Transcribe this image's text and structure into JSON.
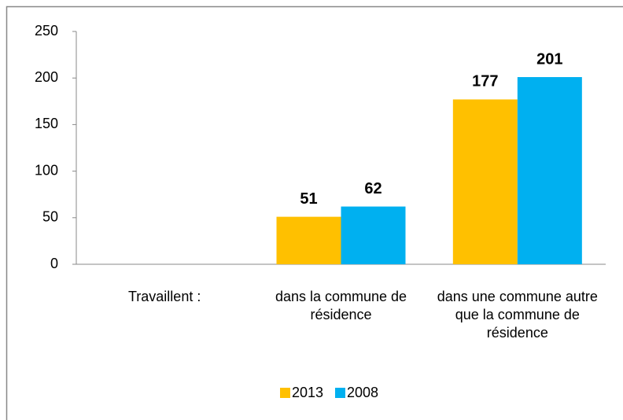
{
  "chart_data": {
    "type": "bar",
    "categories": [
      "Travaillent :",
      "dans la commune de résidence",
      "dans une commune autre que la commune de résidence"
    ],
    "series": [
      {
        "name": "2013",
        "color": "#ffc000",
        "values": [
          null,
          51,
          177
        ]
      },
      {
        "name": "2008",
        "color": "#00b0f0",
        "values": [
          null,
          62,
          201
        ]
      }
    ],
    "ylim": [
      0,
      250
    ],
    "yticks": [
      0,
      50,
      100,
      150,
      200,
      250
    ],
    "grid": false,
    "legend": "bottom"
  }
}
